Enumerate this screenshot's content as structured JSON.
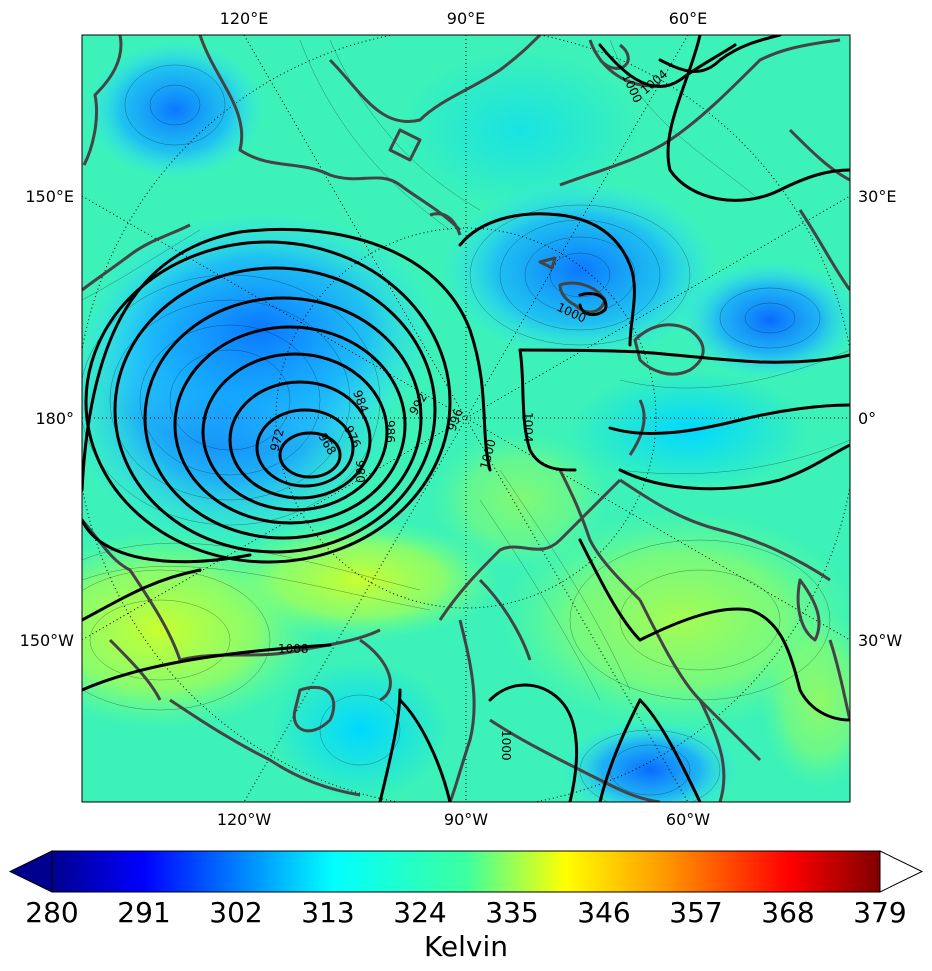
{
  "map": {
    "longitude_labels_top": [
      "120°E",
      "90°E",
      "60°E"
    ],
    "longitude_labels_bottom": [
      "120°W",
      "90°W",
      "60°W"
    ],
    "longitude_labels_left": [
      "150°E",
      "180°",
      "150°W"
    ],
    "longitude_labels_right": [
      "30°E",
      "0°",
      "30°W"
    ],
    "isobar_labels": [
      "1000",
      "1004",
      "1000",
      "984",
      "992",
      "996",
      "986",
      "976",
      "972",
      "968",
      "980",
      "1000",
      "1004",
      "1008",
      "1000"
    ],
    "colors": {
      "coastline": "#444444",
      "isobar": "#000000",
      "field_low": "#0a6cff",
      "field_mid": "#33ffc4",
      "field_high": "#c4ff33"
    }
  },
  "colorbar": {
    "tick_labels": [
      "280",
      "291",
      "302",
      "313",
      "324",
      "335",
      "346",
      "357",
      "368",
      "379"
    ],
    "title": "Kelvin",
    "range": [
      280,
      379
    ],
    "colormap": "jet",
    "extend": "both"
  }
}
